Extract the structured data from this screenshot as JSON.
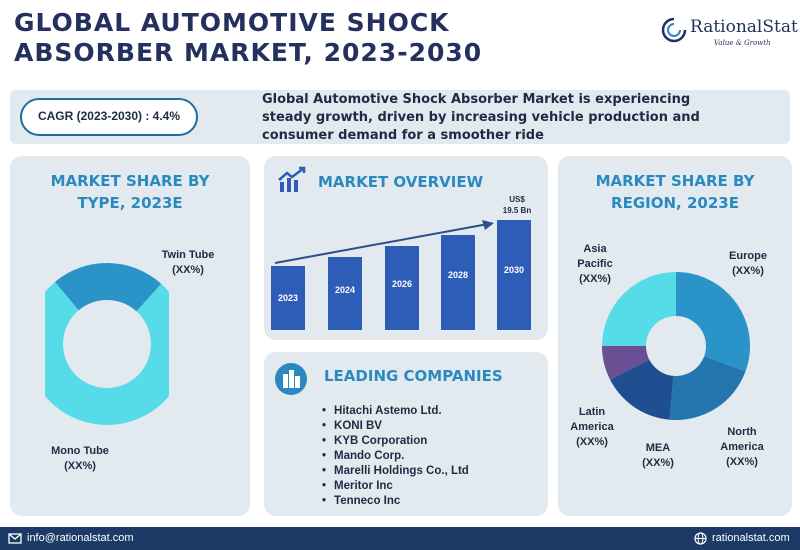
{
  "header": {
    "title_line1": "GLOBAL AUTOMOTIVE SHOCK",
    "title_line2": "ABSORBER MARKET, 2023-2030",
    "logo_name": "RationalStat",
    "logo_tagline": "Value & Growth"
  },
  "cagr": {
    "label": "CAGR (2023-2030) : 4.4%",
    "description": "Global Automotive Shock Absorber Market is experiencing steady growth, driven by increasing vehicle production and consumer demand for a smoother ride"
  },
  "by_type": {
    "title": "MARKET SHARE BY TYPE, 2023E",
    "segments": [
      {
        "name": "Twin Tube",
        "value": "(XX%)",
        "color": "#56dce8"
      },
      {
        "name": "Mono Tube",
        "value": "(XX%)",
        "color": "#2a94c8"
      }
    ]
  },
  "overview": {
    "title": "MARKET OVERVIEW",
    "value_label_line1": "US$",
    "value_label_line2": "19.5 Bn",
    "years": [
      "2023",
      "2024",
      "2026",
      "2028",
      "2030"
    ],
    "bar_color": "#2e5db8"
  },
  "companies": {
    "title": "LEADING COMPANIES",
    "items": [
      "Hitachi Astemo Ltd.",
      "KONI BV",
      "KYB Corporation",
      "Mando Corp.",
      "Marelli Holdings Co., Ltd",
      "Meritor Inc",
      "Tenneco Inc"
    ]
  },
  "by_region": {
    "title": "MARKET SHARE BY REGION, 2023E",
    "segments": [
      {
        "name": "Europe",
        "value": "(XX%)",
        "color": "#2a94c8"
      },
      {
        "name": "North America",
        "value": "(XX%)",
        "color": "#2475ad"
      },
      {
        "name": "MEA",
        "value": "(XX%)",
        "color": "#1f4e91"
      },
      {
        "name": "Latin America",
        "value": "(XX%)",
        "color": "#6a4f94"
      },
      {
        "name": "Asia Pacific",
        "value": "(XX%)",
        "color": "#56dce8"
      }
    ]
  },
  "footer": {
    "email": "info@rationalstat.com",
    "website": "rationalstat.com"
  }
}
